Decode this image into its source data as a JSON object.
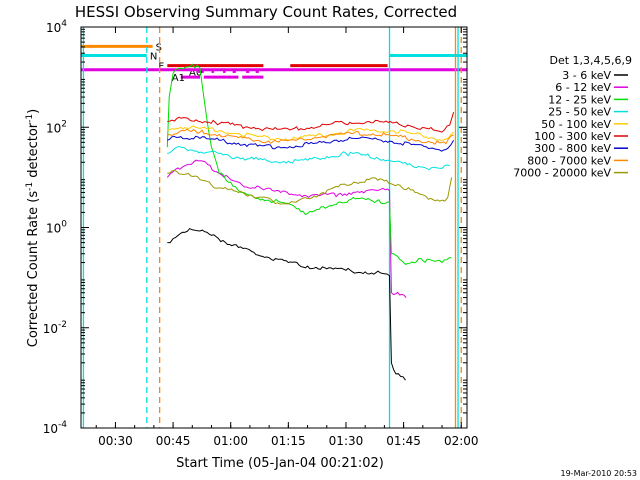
{
  "chart_data": {
    "type": "line",
    "title": "HESSI Observing Summary Count Rates, Corrected",
    "xlabel": "Start Time (05-Jan-04 00:21:02)",
    "ylabel": "Corrected Count Rate (s⁻¹ detector⁻¹)",
    "ylabel_main": "Corrected Count Rate (s",
    "ylabel_mid": " detector",
    "ylabel_end": ")",
    "ylabel_sup": "-1",
    "y_scale": "log",
    "xlim": [
      "00:21:02",
      "02:01:30"
    ],
    "ylim": [
      0.0001,
      10000
    ],
    "x_ticks": [
      {
        "t": "00:30",
        "label": "00:30"
      },
      {
        "t": "00:45",
        "label": "00:45"
      },
      {
        "t": "01:00",
        "label": "01:00"
      },
      {
        "t": "01:15",
        "label": "01:15"
      },
      {
        "t": "01:30",
        "label": "01:30"
      },
      {
        "t": "01:45",
        "label": "01:45"
      },
      {
        "t": "02:00",
        "label": "02:00"
      }
    ],
    "y_ticks": [
      {
        "v": 0.0001,
        "base": "10",
        "exp": "-4"
      },
      {
        "v": 0.01,
        "base": "10",
        "exp": "-2"
      },
      {
        "v": 1,
        "base": "10",
        "exp": "0"
      },
      {
        "v": 100,
        "base": "10",
        "exp": "2"
      },
      {
        "v": 10000,
        "base": "10",
        "exp": "4"
      }
    ],
    "legend_title": "Det 1,3,4,5,6,9",
    "legend_position": "right",
    "series": [
      {
        "name": "3 - 6 keV",
        "color": "#000000",
        "points": [
          [
            "00:43:30",
            0.5
          ],
          [
            "00:45",
            0.6
          ],
          [
            "00:48",
            0.8
          ],
          [
            "00:50",
            0.9
          ],
          [
            "00:52",
            0.85
          ],
          [
            "00:55",
            0.7
          ],
          [
            "00:58",
            0.55
          ],
          [
            "01:02",
            0.4
          ],
          [
            "01:06",
            0.32
          ],
          [
            "01:10",
            0.25
          ],
          [
            "01:15",
            0.2
          ],
          [
            "01:20",
            0.17
          ],
          [
            "01:25",
            0.15
          ],
          [
            "01:30",
            0.14
          ],
          [
            "01:35",
            0.13
          ],
          [
            "01:40",
            0.12
          ],
          [
            "01:41:20",
            0.11
          ],
          [
            "01:41:50",
            0.002
          ],
          [
            "01:43",
            0.0012
          ],
          [
            "01:45:30",
            0.0009
          ]
        ]
      },
      {
        "name": "6 - 12 keV",
        "color": "#e000e0",
        "points": [
          [
            "00:43:30",
            10
          ],
          [
            "00:45",
            13
          ],
          [
            "00:48",
            17
          ],
          [
            "00:51",
            22
          ],
          [
            "00:54",
            18
          ],
          [
            "00:57",
            12
          ],
          [
            "01:00",
            9
          ],
          [
            "01:03",
            7
          ],
          [
            "01:08",
            6
          ],
          [
            "01:13",
            5
          ],
          [
            "01:18",
            4.5
          ],
          [
            "01:23",
            4.3
          ],
          [
            "01:28",
            4.6
          ],
          [
            "01:33",
            5.2
          ],
          [
            "01:38",
            5.5
          ],
          [
            "01:41:20",
            5.5
          ],
          [
            "01:41:50",
            0.05
          ],
          [
            "01:44",
            0.045
          ],
          [
            "01:45:40",
            0.04
          ]
        ]
      },
      {
        "name": "12 - 25 keV",
        "color": "#00dd00",
        "points": [
          [
            "00:43:30",
            40
          ],
          [
            "00:44",
            400
          ],
          [
            "00:45",
            1200
          ],
          [
            "00:47",
            1500
          ],
          [
            "00:50",
            1800
          ],
          [
            "00:52",
            1500
          ],
          [
            "00:53",
            400
          ],
          [
            "00:55",
            40
          ],
          [
            "00:57",
            12
          ],
          [
            "01:00",
            8
          ],
          [
            "01:03",
            5
          ],
          [
            "01:06",
            4
          ],
          [
            "01:10",
            3.5
          ],
          [
            "01:13",
            3.2
          ],
          [
            "01:16",
            2.8
          ],
          [
            "01:20",
            1.9
          ],
          [
            "01:23",
            2.3
          ],
          [
            "01:28",
            3.2
          ],
          [
            "01:33",
            3.8
          ],
          [
            "01:38",
            3.4
          ],
          [
            "01:41:20",
            3.2
          ],
          [
            "01:41:50",
            0.3
          ],
          [
            "01:45",
            0.2
          ],
          [
            "01:50",
            0.22
          ],
          [
            "01:55",
            0.2
          ],
          [
            "01:57:30",
            0.25
          ]
        ]
      },
      {
        "name": "25 - 50 keV",
        "color": "#00e0e0",
        "points": [
          [
            "00:43:30",
            30
          ],
          [
            "00:46",
            40
          ],
          [
            "00:50",
            35
          ],
          [
            "00:54",
            32
          ],
          [
            "00:58",
            28
          ],
          [
            "01:02",
            25
          ],
          [
            "01:06",
            23
          ],
          [
            "01:10",
            21
          ],
          [
            "01:15",
            21
          ],
          [
            "01:20",
            22
          ],
          [
            "01:25",
            26
          ],
          [
            "01:30",
            30
          ],
          [
            "01:34",
            28
          ],
          [
            "01:38",
            25
          ],
          [
            "01:42",
            21
          ],
          [
            "01:46",
            18
          ],
          [
            "01:50",
            16
          ],
          [
            "01:55",
            15
          ],
          [
            "01:57",
            17
          ]
        ]
      },
      {
        "name": "50 - 100 keV",
        "color": "#ffcc00",
        "points": [
          [
            "00:43:30",
            85
          ],
          [
            "00:47",
            100
          ],
          [
            "00:52",
            95
          ],
          [
            "00:57",
            85
          ],
          [
            "01:02",
            75
          ],
          [
            "01:07",
            65
          ],
          [
            "01:12",
            60
          ],
          [
            "01:17",
            60
          ],
          [
            "01:22",
            66
          ],
          [
            "01:27",
            75
          ],
          [
            "01:32",
            85
          ],
          [
            "01:37",
            88
          ],
          [
            "01:42",
            85
          ],
          [
            "01:47",
            75
          ],
          [
            "01:52",
            62
          ],
          [
            "01:56",
            58
          ],
          [
            "01:58",
            80
          ]
        ]
      },
      {
        "name": "100 - 300 keV",
        "color": "#e00000",
        "points": [
          [
            "00:43:30",
            130
          ],
          [
            "00:46",
            150
          ],
          [
            "00:51",
            140
          ],
          [
            "00:56",
            125
          ],
          [
            "01:01",
            110
          ],
          [
            "01:06",
            100
          ],
          [
            "01:11",
            90
          ],
          [
            "01:16",
            92
          ],
          [
            "01:21",
            100
          ],
          [
            "01:26",
            115
          ],
          [
            "01:31",
            125
          ],
          [
            "01:36",
            130
          ],
          [
            "01:41",
            125
          ],
          [
            "01:46",
            110
          ],
          [
            "01:51",
            95
          ],
          [
            "01:55",
            80
          ],
          [
            "01:57",
            110
          ],
          [
            "01:58",
            200
          ]
        ]
      },
      {
        "name": "300 - 800 keV",
        "color": "#0000cc",
        "points": [
          [
            "00:43:30",
            55
          ],
          [
            "00:47",
            65
          ],
          [
            "00:52",
            60
          ],
          [
            "00:57",
            55
          ],
          [
            "01:02",
            48
          ],
          [
            "01:07",
            42
          ],
          [
            "01:12",
            40
          ],
          [
            "01:17",
            42
          ],
          [
            "01:22",
            48
          ],
          [
            "01:27",
            55
          ],
          [
            "01:32",
            60
          ],
          [
            "01:37",
            58
          ],
          [
            "01:42",
            52
          ],
          [
            "01:47",
            45
          ],
          [
            "01:52",
            38
          ],
          [
            "01:56",
            36
          ],
          [
            "01:58",
            55
          ]
        ]
      },
      {
        "name": "800 - 7000 keV",
        "color": "#ff8800",
        "points": [
          [
            "00:43:30",
            70
          ],
          [
            "00:47",
            85
          ],
          [
            "00:52",
            80
          ],
          [
            "00:57",
            72
          ],
          [
            "01:02",
            62
          ],
          [
            "01:07",
            55
          ],
          [
            "01:12",
            52
          ],
          [
            "01:17",
            55
          ],
          [
            "01:22",
            62
          ],
          [
            "01:27",
            70
          ],
          [
            "01:32",
            76
          ],
          [
            "01:37",
            74
          ],
          [
            "01:42",
            68
          ],
          [
            "01:47",
            58
          ],
          [
            "01:52",
            50
          ],
          [
            "01:56",
            47
          ],
          [
            "01:58",
            70
          ]
        ]
      },
      {
        "name": "7000 - 20000 keV",
        "color": "#999900",
        "points": [
          [
            "00:43:30",
            12
          ],
          [
            "00:46",
            13
          ],
          [
            "00:49",
            12
          ],
          [
            "00:52",
            9
          ],
          [
            "00:55",
            7
          ],
          [
            "00:58",
            6
          ],
          [
            "01:02",
            5
          ],
          [
            "01:05",
            4.5
          ],
          [
            "01:08",
            4
          ],
          [
            "01:11",
            3.3
          ],
          [
            "01:14",
            3
          ],
          [
            "01:17",
            3.2
          ],
          [
            "01:20",
            3.8
          ],
          [
            "01:24",
            5
          ],
          [
            "01:28",
            6.5
          ],
          [
            "01:32",
            8
          ],
          [
            "01:36",
            9
          ],
          [
            "01:40",
            8.5
          ],
          [
            "01:44",
            7
          ],
          [
            "01:48",
            5
          ],
          [
            "01:52",
            3.8
          ],
          [
            "01:55",
            3.5
          ],
          [
            "01:56:30",
            4
          ],
          [
            "01:57:30",
            10
          ]
        ]
      }
    ],
    "flag_bars": [
      {
        "label": "S",
        "color": "#ff8800",
        "y": 4100,
        "segments": [
          [
            "00:21:02",
            "00:39:40"
          ]
        ]
      },
      {
        "label": "N",
        "color": "#00e0e0",
        "y": 2700,
        "segments": [
          [
            "00:21:02",
            "00:38:10"
          ],
          [
            "01:41:20",
            "02:01:30"
          ]
        ]
      },
      {
        "label": "F",
        "color": "#e00000",
        "y": 1700,
        "segments": [
          [
            "00:43:30",
            "01:08:30"
          ],
          [
            "01:15:30",
            "01:40:50"
          ]
        ]
      },
      {
        "label": "A0",
        "color": "#e000e0",
        "y": 1300,
        "segments": [
          [
            "00:51:30",
            "00:53:00"
          ],
          [
            "00:55:00",
            "00:55:40"
          ],
          [
            "00:58:00",
            "00:58:40"
          ],
          [
            "01:00:30",
            "01:01:20"
          ],
          [
            "01:04:00",
            "01:04:50"
          ],
          [
            "01:06:30",
            "01:07:20"
          ]
        ]
      },
      {
        "label": "A1",
        "color": "#e000e0",
        "y": 1000,
        "segments": [
          [
            "00:47:00",
            "00:52:00"
          ],
          [
            "00:53:00",
            "01:02:00"
          ],
          [
            "01:03:00",
            "01:08:30"
          ]
        ]
      },
      {
        "label": "",
        "color": "#e000e0",
        "y": 1400,
        "segments": [
          [
            "00:21:02",
            "02:01:30"
          ]
        ]
      }
    ],
    "vlines": [
      {
        "t": "00:21:40",
        "color": "#00e0e0",
        "style": "solid"
      },
      {
        "t": "00:38:10",
        "color": "#00e0e0",
        "style": "dashed"
      },
      {
        "t": "00:41:30",
        "color": "#ff8800",
        "style": "dashed"
      },
      {
        "t": "01:41:20",
        "color": "#00e0e0",
        "style": "solid"
      },
      {
        "t": "01:58:30",
        "color": "#ff8800",
        "style": "solid"
      },
      {
        "t": "01:59:10",
        "color": "#00e0e0",
        "style": "solid"
      },
      {
        "t": "02:00:00",
        "color": "#ff8800",
        "style": "dashed"
      }
    ]
  },
  "footer_timestamp": "19-Mar-2010 20:53"
}
